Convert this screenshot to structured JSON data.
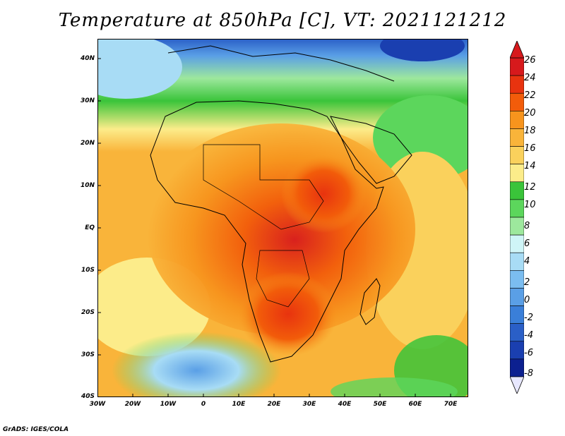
{
  "title": "Temperature at 850hPa [C], VT: 2021121212",
  "footer": "GrADS: IGES/COLA",
  "map": {
    "lat_ticks": [
      "40N",
      "30N",
      "20N",
      "10N",
      "EQ",
      "10S",
      "20S",
      "30S",
      "40S"
    ],
    "lon_ticks": [
      "30W",
      "20W",
      "10W",
      "0",
      "10E",
      "20E",
      "30E",
      "40E",
      "50E",
      "60E",
      "70E"
    ],
    "extent": {
      "lon_min": -30,
      "lon_max": 75,
      "lat_min": -40,
      "lat_max": 45
    }
  },
  "colorbar": {
    "levels": [
      "26",
      "24",
      "22",
      "20",
      "18",
      "16",
      "14",
      "12",
      "10",
      "8",
      "6",
      "4",
      "2",
      "0",
      "-2",
      "-4",
      "-6",
      "-8"
    ],
    "colors": [
      "#d7191c",
      "#e8330f",
      "#f25c0a",
      "#f7941d",
      "#f9b43a",
      "#fad15c",
      "#fcec8a",
      "#3ac43a",
      "#5cd65c",
      "#9de89d",
      "#cff5f7",
      "#a8dcf5",
      "#7bbdf0",
      "#5a9fe6",
      "#3a7fd9",
      "#2a5fc7",
      "#1a3fb0",
      "#0c2090"
    ],
    "top_color": "#d7191c",
    "bottom_color": "#e8e8ff"
  }
}
